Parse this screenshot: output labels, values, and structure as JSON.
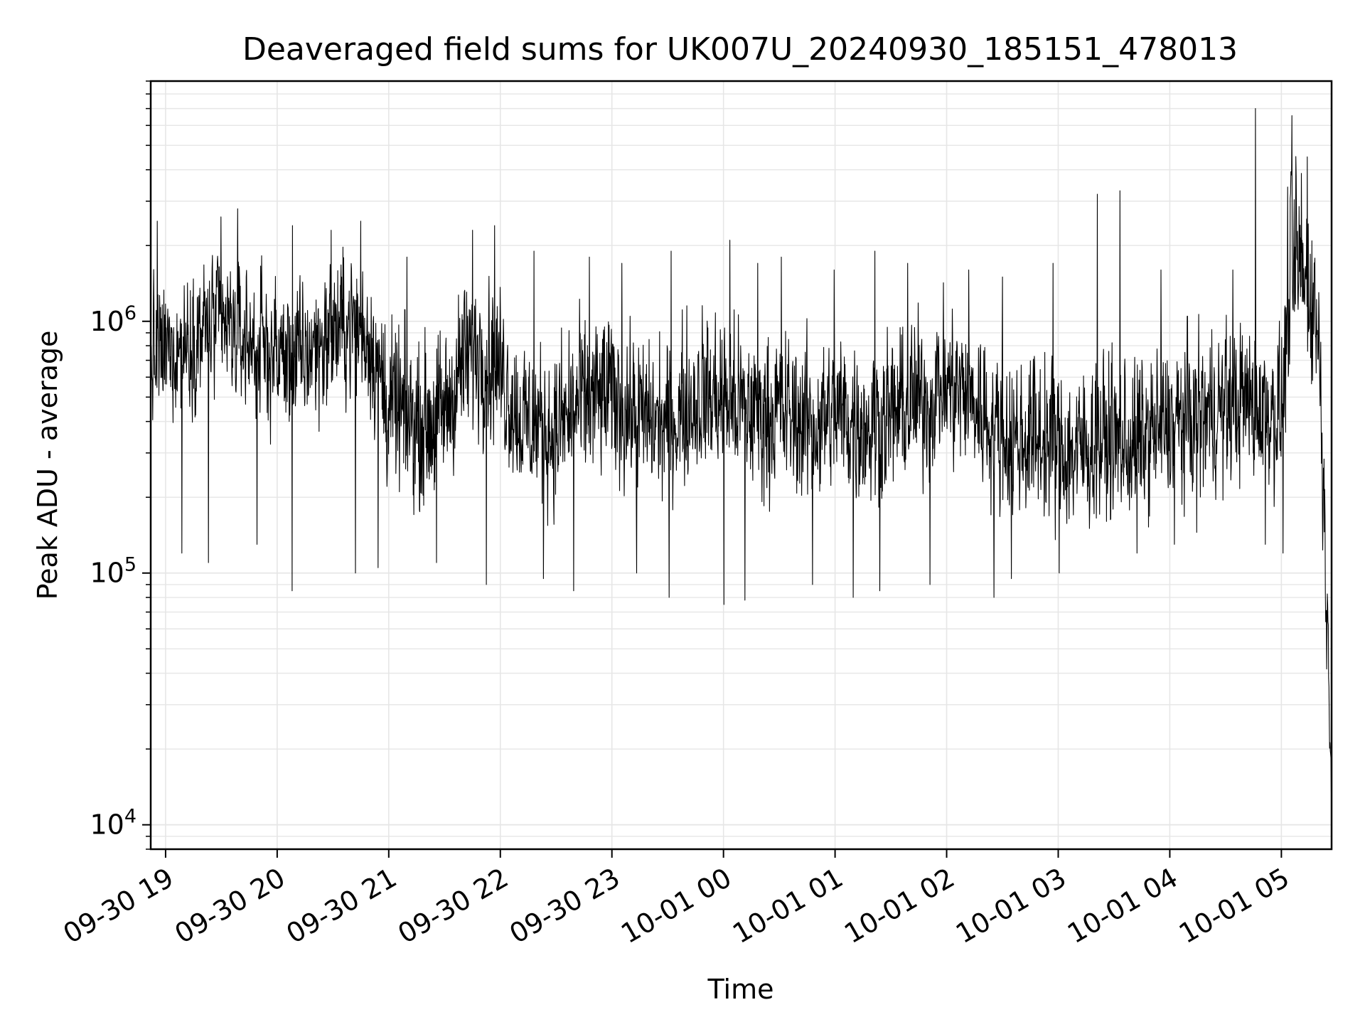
{
  "chart_data": {
    "type": "line",
    "title": "Deaveraged field sums for UK007U_20240930_185151_478013",
    "xlabel": "Time",
    "ylabel": "Peak ADU - average",
    "yscale": "log",
    "grid": true,
    "line_color": "#000000",
    "grid_color": "#e6e6e6",
    "xlim": [
      "2024-09-30 18:52",
      "2024-10-01 05:27"
    ],
    "ylim": [
      8000,
      9000000
    ],
    "x_ticks": [
      {
        "value": "2024-09-30 19:00",
        "label": "09-30 19"
      },
      {
        "value": "2024-09-30 20:00",
        "label": "09-30 20"
      },
      {
        "value": "2024-09-30 21:00",
        "label": "09-30 21"
      },
      {
        "value": "2024-09-30 22:00",
        "label": "09-30 22"
      },
      {
        "value": "2024-09-30 23:00",
        "label": "09-30 23"
      },
      {
        "value": "2024-10-01 00:00",
        "label": "10-01 00"
      },
      {
        "value": "2024-10-01 01:00",
        "label": "10-01 01"
      },
      {
        "value": "2024-10-01 02:00",
        "label": "10-01 02"
      },
      {
        "value": "2024-10-01 03:00",
        "label": "10-01 03"
      },
      {
        "value": "2024-10-01 04:00",
        "label": "10-01 04"
      },
      {
        "value": "2024-10-01 05:00",
        "label": "10-01 05"
      }
    ],
    "y_ticks": [
      {
        "value": 10000,
        "base": "10",
        "exp": "4"
      },
      {
        "value": 100000,
        "base": "10",
        "exp": "5"
      },
      {
        "value": 1000000,
        "base": "10",
        "exp": "6"
      }
    ],
    "series": [
      {
        "x": [
          "2024-09-30 18:52",
          "2024-09-30 19:00",
          "2024-09-30 19:10",
          "2024-09-30 19:20",
          "2024-09-30 19:30",
          "2024-09-30 19:40",
          "2024-09-30 19:50",
          "2024-09-30 20:00",
          "2024-09-30 20:10",
          "2024-09-30 20:20",
          "2024-09-30 20:30",
          "2024-09-30 20:40",
          "2024-09-30 20:50",
          "2024-09-30 21:00",
          "2024-09-30 21:10",
          "2024-09-30 21:20",
          "2024-09-30 21:30",
          "2024-09-30 21:40",
          "2024-09-30 21:50",
          "2024-09-30 22:00",
          "2024-09-30 22:10",
          "2024-09-30 22:20",
          "2024-09-30 22:30",
          "2024-09-30 22:40",
          "2024-09-30 22:50",
          "2024-09-30 23:00",
          "2024-09-30 23:10",
          "2024-09-30 23:20",
          "2024-09-30 23:30",
          "2024-09-30 23:40",
          "2024-09-30 23:50",
          "2024-10-01 00:00",
          "2024-10-01 00:10",
          "2024-10-01 00:20",
          "2024-10-01 00:30",
          "2024-10-01 00:40",
          "2024-10-01 00:50",
          "2024-10-01 01:00",
          "2024-10-01 01:10",
          "2024-10-01 01:20",
          "2024-10-01 01:30",
          "2024-10-01 01:40",
          "2024-10-01 01:50",
          "2024-10-01 02:00",
          "2024-10-01 02:10",
          "2024-10-01 02:20",
          "2024-10-01 02:30",
          "2024-10-01 02:40",
          "2024-10-01 02:50",
          "2024-10-01 03:00",
          "2024-10-01 03:10",
          "2024-10-01 03:20",
          "2024-10-01 03:30",
          "2024-10-01 03:40",
          "2024-10-01 03:50",
          "2024-10-01 04:00",
          "2024-10-01 04:10",
          "2024-10-01 04:20",
          "2024-10-01 04:30",
          "2024-10-01 04:40",
          "2024-10-01 04:50",
          "2024-10-01 05:00",
          "2024-10-01 05:05",
          "2024-10-01 05:10",
          "2024-10-01 05:15",
          "2024-10-01 05:20",
          "2024-10-01 05:24",
          "2024-10-01 05:27"
        ],
        "y": [
          700000,
          750000,
          800000,
          900000,
          950000,
          850000,
          800000,
          750000,
          700000,
          800000,
          900000,
          1000000,
          850000,
          450000,
          400000,
          380000,
          420000,
          700000,
          800000,
          650000,
          400000,
          380000,
          360000,
          450000,
          480000,
          500000,
          420000,
          400000,
          380000,
          450000,
          500000,
          480000,
          450000,
          420000,
          440000,
          400000,
          380000,
          430000,
          400000,
          380000,
          420000,
          450000,
          500000,
          550000,
          500000,
          420000,
          350000,
          330000,
          340000,
          300000,
          290000,
          320000,
          330000,
          310000,
          350000,
          380000,
          400000,
          420000,
          450000,
          470000,
          460000,
          420000,
          1300000,
          1500000,
          1200000,
          900000,
          100000,
          15000
        ],
        "low": [
          300000,
          350000,
          380000,
          420000,
          450000,
          400000,
          350000,
          300000,
          280000,
          320000,
          380000,
          420000,
          360000,
          180000,
          170000,
          160000,
          180000,
          260000,
          300000,
          260000,
          170000,
          160000,
          150000,
          180000,
          200000,
          210000,
          180000,
          170000,
          160000,
          190000,
          210000,
          200000,
          190000,
          170000,
          180000,
          170000,
          160000,
          180000,
          160000,
          150000,
          170000,
          190000,
          210000,
          230000,
          210000,
          180000,
          150000,
          140000,
          145000,
          130000,
          125000,
          135000,
          140000,
          130000,
          150000,
          160000,
          170000,
          180000,
          190000,
          200000,
          190000,
          180000,
          700000,
          800000,
          600000,
          400000,
          40000,
          10500
        ],
        "high": [
          1600000,
          1700000,
          1800000,
          2200000,
          2300000,
          2000000,
          1900000,
          1700000,
          1600000,
          1800000,
          2100000,
          2300000,
          2000000,
          1200000,
          1100000,
          1000000,
          1100000,
          1700000,
          1900000,
          1600000,
          1100000,
          1000000,
          950000,
          1200000,
          1300000,
          1400000,
          1100000,
          1000000,
          950000,
          1200000,
          1400000,
          1300000,
          1200000,
          1100000,
          1150000,
          1050000,
          1000000,
          1150000,
          1050000,
          1000000,
          1100000,
          1200000,
          1400000,
          1500000,
          1400000,
          1100000,
          950000,
          900000,
          920000,
          850000,
          800000,
          880000,
          900000,
          850000,
          950000,
          1000000,
          1050000,
          1100000,
          1200000,
          1250000,
          1200000,
          1100000,
          6500000,
          7000000,
          5000000,
          3000000,
          200000,
          25000
        ],
        "min_dips": [
          120000,
          110000,
          130000,
          85000,
          100000,
          105000,
          110000,
          90000,
          95000,
          85000,
          100000,
          80000,
          75000,
          78000,
          90000,
          80000,
          85000,
          90000,
          80000,
          95000,
          100000,
          120000,
          130000,
          145000,
          130000,
          120000
        ],
        "max_spikes": [
          2500000,
          2600000,
          2800000,
          2400000,
          2300000,
          2500000,
          1800000,
          2300000,
          2400000,
          1900000,
          1800000,
          1700000,
          1900000,
          2100000,
          1700000,
          1800000,
          1600000,
          1900000,
          1700000,
          1600000,
          1500000,
          1700000,
          3200000,
          3300000,
          1600000,
          1600000,
          7000000,
          4500000
        ]
      }
    ]
  }
}
